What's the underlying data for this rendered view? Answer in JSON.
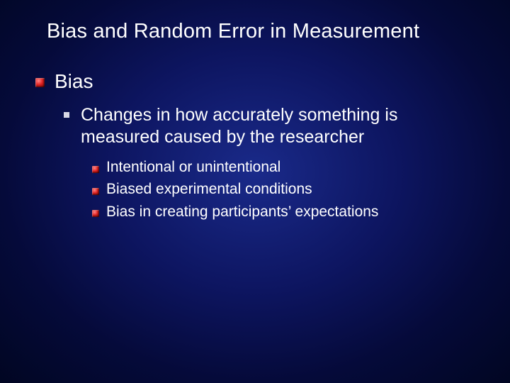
{
  "slide": {
    "background": {
      "gradient_center_color": "#1a2a8a",
      "gradient_mid_color": "#0d1560",
      "gradient_outer_color": "#050a3a",
      "gradient_edge_color": "#010622"
    },
    "text_color": "#ffffff",
    "title": {
      "text": "Bias and Random Error in Measurement",
      "fontsize": 29
    },
    "bullets": {
      "level1_bullet_gradient": [
        "#ff8888",
        "#e02222",
        "#6b0000"
      ],
      "level2_bullet_color": "#d9d9e6",
      "level3_bullet_gradient": [
        "#ff8888",
        "#e02222",
        "#6b0000"
      ],
      "l1_fontsize": 28,
      "l2_fontsize": 25,
      "l3_fontsize": 21,
      "items": [
        {
          "level": 1,
          "text": "Bias"
        },
        {
          "level": 2,
          "text": "Changes in how accurately something is measured caused by the researcher"
        },
        {
          "level": 3,
          "text": "Intentional or unintentional"
        },
        {
          "level": 3,
          "text": "Biased experimental conditions"
        },
        {
          "level": 3,
          "text": "Bias in creating participants’ expectations"
        }
      ]
    }
  }
}
